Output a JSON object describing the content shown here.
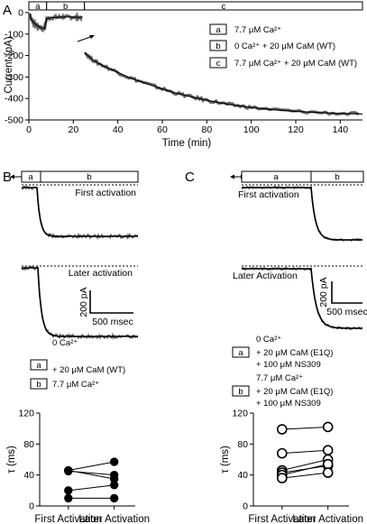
{
  "panels": {
    "A": "A",
    "B": "B",
    "C": "C"
  },
  "chart_data": [
    {
      "panel": "A",
      "type": "line",
      "xlabel": "Time (min)",
      "ylabel": "Current (pA)",
      "xlim": [
        0,
        150
      ],
      "ylim": [
        -500,
        0
      ],
      "xticks": [
        0,
        20,
        40,
        60,
        80,
        100,
        120,
        140
      ],
      "yticks": [
        0,
        -100,
        -200,
        -300,
        -400,
        -500
      ],
      "epochs": [
        {
          "label": "a",
          "x": [
            0,
            8
          ]
        },
        {
          "label": "b",
          "x": [
            8,
            25
          ]
        },
        {
          "label": "c",
          "x": [
            25,
            150
          ]
        }
      ],
      "legend": [
        {
          "box": "a",
          "text": "7.7 μM Ca²⁺"
        },
        {
          "box": "b",
          "text": "0 Ca²⁺ + 20 μM CaM (WT)"
        },
        {
          "box": "c",
          "text": "7.7 μM Ca²⁺ + 20 μM CaM (WT)"
        }
      ],
      "series": [
        {
          "x": [
            0.5,
            1,
            2,
            3,
            4,
            5,
            6,
            7,
            8,
            10,
            12,
            14,
            16,
            18,
            20,
            22,
            24
          ],
          "y": [
            -5,
            -30,
            -45,
            -55,
            -62,
            -68,
            -72,
            -75,
            -28,
            -24,
            -22,
            -21,
            -20,
            -20,
            -21,
            -22,
            -22
          ]
        },
        {
          "x": [
            25,
            28,
            31,
            35,
            40,
            45,
            50,
            55,
            60,
            65,
            70,
            75,
            80,
            85,
            90,
            95,
            100,
            110,
            120,
            130,
            140,
            150
          ],
          "y": [
            -185,
            -215,
            -235,
            -255,
            -278,
            -302,
            -320,
            -338,
            -355,
            -372,
            -385,
            -397,
            -408,
            -418,
            -428,
            -435,
            -442,
            -452,
            -460,
            -465,
            -470,
            -472
          ]
        }
      ]
    },
    {
      "panel": "B",
      "type": "line",
      "epochs": [
        {
          "label": "a"
        },
        {
          "label": "b"
        }
      ],
      "trace_labels": [
        "First activation",
        "Later activation"
      ],
      "scalebar": {
        "y": "200 pA",
        "x": "500 msec"
      },
      "legend": [
        {
          "box": "a",
          "lines": [
            "0 Ca²⁺",
            "+ 20 μM CaM (WT)"
          ]
        },
        {
          "box": "b",
          "lines": [
            "7.7 μM Ca²⁺"
          ]
        }
      ]
    },
    {
      "panel": "B",
      "type": "scatter",
      "ylabel": "τ (ms)",
      "categories": [
        "First Activation",
        "Later Activation"
      ],
      "ylim": [
        0,
        120
      ],
      "yticks": [
        0,
        40,
        80,
        120
      ],
      "marker": "filled",
      "pairs": [
        [
          46,
          57
        ],
        [
          45,
          40
        ],
        [
          46,
          35
        ],
        [
          20,
          27
        ],
        [
          10,
          10
        ]
      ]
    },
    {
      "panel": "C",
      "type": "line",
      "epochs": [
        {
          "label": "a"
        },
        {
          "label": "b"
        }
      ],
      "trace_labels": [
        "First activation",
        "Later Activation"
      ],
      "scalebar": {
        "y": "200 pA",
        "x": "500 msec"
      },
      "legend": [
        {
          "box": "a",
          "lines": [
            "0 Ca²⁺",
            "+ 20 μM CaM (E1Q)",
            "+ 100 μM NS309"
          ]
        },
        {
          "box": "b",
          "lines": [
            "7.7 μM Ca²⁺",
            "+ 20 μM CaM (E1Q)",
            "+ 100 μM NS309"
          ]
        }
      ]
    },
    {
      "panel": "C",
      "type": "scatter",
      "ylabel": "τ (ms)",
      "categories": [
        "First Activation",
        "Later Activation"
      ],
      "ylim": [
        0,
        120
      ],
      "yticks": [
        0,
        40,
        80,
        120
      ],
      "marker": "open",
      "pairs": [
        [
          99,
          102
        ],
        [
          68,
          72
        ],
        [
          46,
          60
        ],
        [
          43,
          52
        ],
        [
          40,
          54
        ],
        [
          36,
          43
        ]
      ]
    }
  ]
}
